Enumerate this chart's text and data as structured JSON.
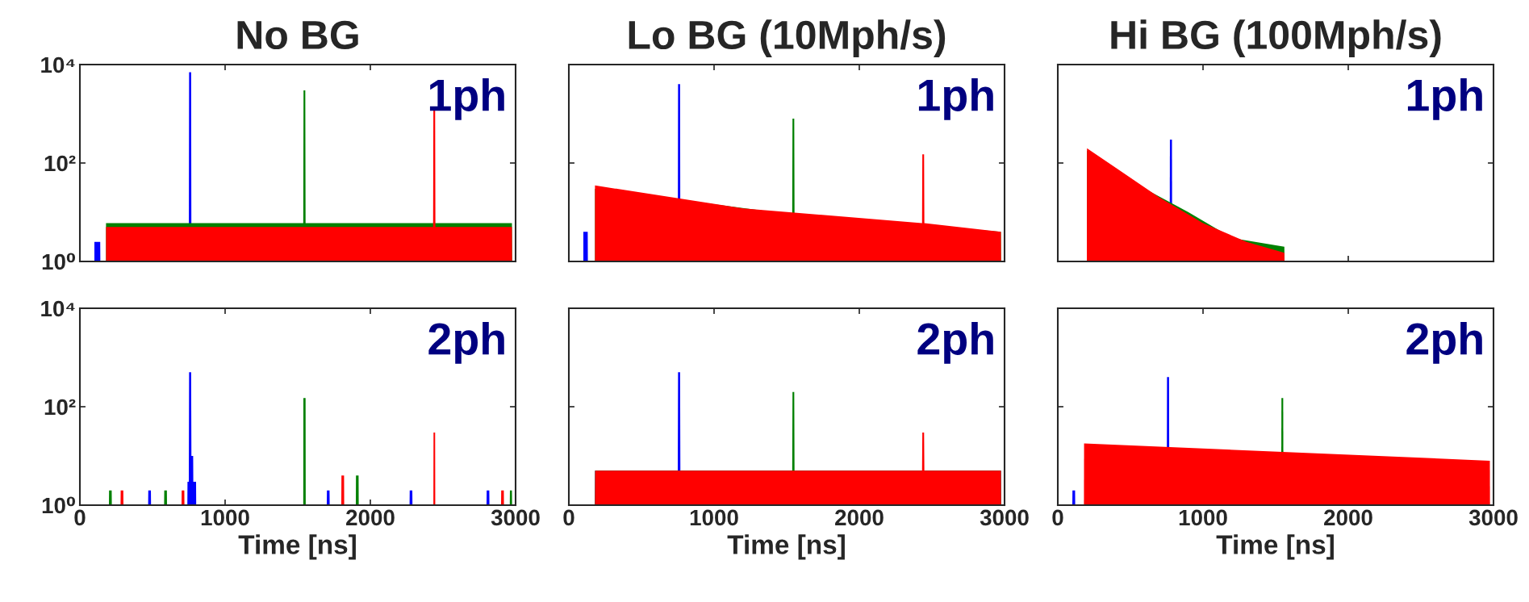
{
  "chart_data": [
    {
      "type": "area",
      "title": "No BG",
      "annotations": [
        "1ph"
      ],
      "log": "y",
      "tick_labels": "y",
      "xlim": [
        0,
        3000
      ],
      "xticks": [
        0,
        1000,
        2000,
        3000
      ],
      "ylim": [
        1,
        10000
      ],
      "yticks": [
        {
          "value": 1,
          "label": "10⁰"
        },
        {
          "value": 100,
          "label": "10²"
        },
        {
          "value": 10000,
          "label": "10⁴"
        }
      ],
      "series": [
        {
          "color": "#0000ff",
          "x": [
            100,
            140,
            141,
            750,
            752,
            766,
            768
          ],
          "values": [
            2.5,
            2.5,
            1,
            1,
            7000,
            7000,
            1
          ]
        },
        {
          "color": "#008000",
          "x": [
            180,
            1538,
            1540,
            1552,
            1554,
            2975,
            2976
          ],
          "values": [
            6,
            6,
            3000,
            3000,
            6,
            6,
            1
          ]
        },
        {
          "color": "#ff0000",
          "x": [
            180,
            2432,
            2434,
            2446,
            2448,
            2975,
            2976
          ],
          "values": [
            5,
            5,
            1200,
            1200,
            5,
            5,
            1
          ]
        }
      ]
    },
    {
      "type": "area",
      "title": "Lo BG (10Mph/s)",
      "annotations": [
        "1ph"
      ],
      "log": "y",
      "tick_labels": false,
      "xlim": [
        0,
        3000
      ],
      "xticks": [
        0,
        1000,
        2000,
        3000
      ],
      "ylim": [
        1,
        10000
      ],
      "yticks": [
        {
          "value": 1,
          "label": null
        },
        {
          "value": 100,
          "label": null
        },
        {
          "value": 10000,
          "label": null
        }
      ],
      "series": [
        {
          "color": "#0000ff",
          "x": [
            100,
            130,
            131,
            750,
            752,
            766,
            768
          ],
          "values": [
            4,
            4,
            1,
            1,
            4000,
            4000,
            1
          ]
        },
        {
          "color": "#008000",
          "x": [
            180,
            1538,
            1540,
            1552,
            1554,
            2975,
            2976
          ],
          "values": [
            30,
            9,
            800,
            800,
            9,
            4,
            1
          ]
        },
        {
          "color": "#ff0000",
          "x": [
            180,
            1200,
            2432,
            2434,
            2446,
            2448,
            2975,
            2976
          ],
          "values": [
            35,
            12,
            6,
            150,
            150,
            6,
            4,
            1
          ]
        }
      ]
    },
    {
      "type": "area",
      "title": "Hi BG (100Mph/s)",
      "annotations": [
        "1ph"
      ],
      "log": "y",
      "tick_labels": false,
      "xlim": [
        0,
        3000
      ],
      "xticks": [
        0,
        1000,
        2000,
        3000
      ],
      "ylim": [
        1,
        10000
      ],
      "yticks": [
        {
          "value": 1,
          "label": null
        },
        {
          "value": 100,
          "label": null
        },
        {
          "value": 10000,
          "label": null
        }
      ],
      "series": [
        {
          "color": "#0000ff",
          "x": [
            770,
            772,
            786,
            788
          ],
          "values": [
            1,
            300,
            300,
            1
          ]
        },
        {
          "color": "#008000",
          "x": [
            200,
            201,
            600,
            900,
            1200,
            1560,
            1561
          ],
          "values": [
            1,
            180,
            30,
            10,
            3,
            2,
            1
          ]
        },
        {
          "color": "#ff0000",
          "x": [
            200,
            201,
            400,
            700,
            1000,
            1300,
            1560,
            1561
          ],
          "values": [
            1,
            200,
            80,
            20,
            6,
            2.5,
            1.5,
            1
          ]
        }
      ]
    },
    {
      "type": "area",
      "xlabel": "Time [ns]",
      "annotations": [
        "2ph"
      ],
      "log": "y",
      "xlim": [
        0,
        3000
      ],
      "xticks": [
        0,
        1000,
        2000,
        3000
      ],
      "ylim": [
        1,
        10000
      ],
      "yticks": [
        {
          "value": 1,
          "label": "10⁰"
        },
        {
          "value": 100,
          "label": "10²"
        },
        {
          "value": 10000,
          "label": "10⁴"
        }
      ],
      "series": [
        {
          "color": "#0000ff",
          "x": [
            470,
            471,
            489,
            490,
            740,
            741,
            750,
            752,
            766,
            768,
            780,
            781,
            800,
            801,
            1700,
            1701,
            1719,
            1720,
            2270,
            2271,
            2289,
            2290,
            2800,
            2801,
            2819,
            2820
          ],
          "values": [
            1,
            2,
            2,
            1,
            1,
            3,
            3,
            500,
            500,
            10,
            10,
            3,
            3,
            1,
            1,
            2,
            2,
            1,
            1,
            2,
            2,
            1,
            1,
            2,
            2,
            1
          ]
        },
        {
          "color": "#008000",
          "x": [
            200,
            201,
            219,
            220,
            580,
            581,
            599,
            600,
            1538,
            1539,
            1554,
            1555,
            1900,
            1901,
            1919,
            1920,
            2960,
            2961,
            2975,
            2976
          ],
          "values": [
            1,
            2,
            2,
            1,
            1,
            2,
            2,
            1,
            1,
            150,
            150,
            1,
            1,
            4,
            4,
            1,
            1,
            2,
            2,
            1
          ]
        },
        {
          "color": "#ff0000",
          "x": [
            280,
            281,
            299,
            300,
            700,
            701,
            719,
            720,
            1800,
            1801,
            1819,
            1820,
            2434,
            2435,
            2446,
            2447,
            2900,
            2901,
            2919,
            2920
          ],
          "values": [
            1,
            2,
            2,
            1,
            1,
            2,
            2,
            1,
            1,
            4,
            4,
            1,
            1,
            30,
            30,
            1,
            1,
            2,
            2,
            1
          ]
        }
      ]
    },
    {
      "type": "area",
      "xlabel": "Time [ns]",
      "annotations": [
        "2ph"
      ],
      "log": "y",
      "tick_labels": "x",
      "xlim": [
        0,
        3000
      ],
      "xticks": [
        0,
        1000,
        2000,
        3000
      ],
      "ylim": [
        1,
        10000
      ],
      "yticks": [
        {
          "value": 1,
          "label": null
        },
        {
          "value": 100,
          "label": null
        },
        {
          "value": 10000,
          "label": null
        }
      ],
      "series": [
        {
          "color": "#0000ff",
          "x": [
            180,
            181,
            750,
            752,
            766,
            768,
            2975,
            2976
          ],
          "values": [
            1,
            5,
            5,
            500,
            500,
            5,
            5,
            1
          ]
        },
        {
          "color": "#008000",
          "x": [
            180,
            181,
            1538,
            1540,
            1552,
            1554,
            2975,
            2976
          ],
          "values": [
            1,
            5,
            5,
            200,
            200,
            5,
            5,
            1
          ]
        },
        {
          "color": "#ff0000",
          "x": [
            180,
            181,
            2432,
            2434,
            2446,
            2448,
            2975,
            2976
          ],
          "values": [
            1,
            5,
            5,
            30,
            30,
            5,
            5,
            1
          ]
        }
      ]
    },
    {
      "type": "area",
      "xlabel": "Time [ns]",
      "annotations": [
        "2ph"
      ],
      "log": "y",
      "tick_labels": "x",
      "xlim": [
        0,
        3000
      ],
      "xticks": [
        0,
        1000,
        2000,
        3000
      ],
      "ylim": [
        1,
        10000
      ],
      "yticks": [
        {
          "value": 1,
          "label": null
        },
        {
          "value": 100,
          "label": null
        },
        {
          "value": 10000,
          "label": null
        }
      ],
      "series": [
        {
          "color": "#0000ff",
          "x": [
            100,
            101,
            119,
            120,
            750,
            752,
            766,
            768
          ],
          "values": [
            1,
            2,
            2,
            1,
            1,
            400,
            400,
            1
          ]
        },
        {
          "color": "#008000",
          "x": [
            1538,
            1540,
            1552,
            1554
          ],
          "values": [
            1,
            150,
            150,
            1
          ]
        },
        {
          "color": "#ff0000",
          "x": [
            180,
            181,
            2975,
            2976
          ],
          "values": [
            1,
            18,
            8,
            1
          ]
        }
      ]
    }
  ]
}
